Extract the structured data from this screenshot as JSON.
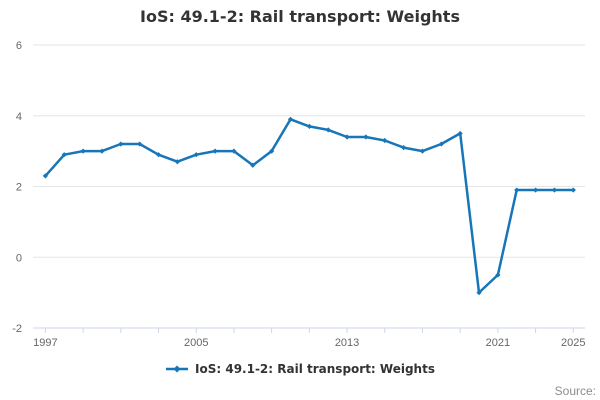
{
  "chart": {
    "title": "IoS: 49.1-2: Rail transport: Weights",
    "legend": {
      "label": "IoS: 49.1-2: Rail transport: Weights"
    },
    "source_label": "Source:"
  },
  "chart_data": {
    "type": "line",
    "title": "IoS: 49.1-2: Rail transport: Weights",
    "xlabel": "",
    "ylabel": "",
    "x": [
      1997,
      1998,
      1999,
      2000,
      2001,
      2002,
      2003,
      2004,
      2005,
      2006,
      2007,
      2008,
      2009,
      2010,
      2011,
      2012,
      2013,
      2014,
      2015,
      2016,
      2017,
      2018,
      2019,
      2020,
      2021,
      2022,
      2023,
      2024,
      2025
    ],
    "series": [
      {
        "name": "IoS: 49.1-2: Rail transport: Weights",
        "color": "#1776b8",
        "values": [
          2.3,
          2.9,
          3.0,
          3.0,
          3.2,
          3.2,
          2.9,
          2.7,
          2.9,
          3.0,
          3.0,
          2.6,
          3.0,
          3.9,
          3.7,
          3.6,
          3.4,
          3.4,
          3.3,
          3.1,
          3.0,
          3.2,
          3.5,
          -1.0,
          -0.5,
          1.9,
          1.9,
          1.9,
          1.9
        ]
      }
    ],
    "ylim": [
      -2,
      6
    ],
    "y_ticks": [
      -2,
      0,
      2,
      4,
      6
    ],
    "x_tick_step": 2,
    "x_tick_labels": [
      "1997",
      "2005",
      "2013",
      "2021",
      "2025"
    ],
    "grid": true,
    "legend_position": "bottom-center",
    "colors": {
      "grid": "#e6e6e6",
      "axis": "#ccd6eb",
      "tick_label": "#666666",
      "title": "#333333",
      "source": "#8c8c8c"
    }
  }
}
